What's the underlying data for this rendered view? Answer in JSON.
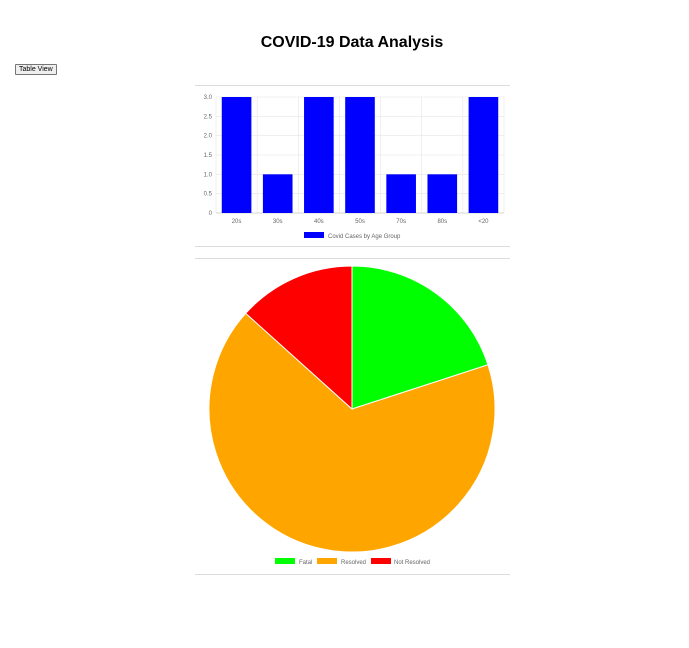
{
  "title": "COVID-19 Data Analysis",
  "toolbar": {
    "table_view_label": "Table View"
  },
  "colors": {
    "bar": "#0000ff",
    "fatal": "#00ff00",
    "resolved": "#ffa500",
    "not_resolved": "#ff0000",
    "grid": "#e5e5e5",
    "tick": "#666666"
  },
  "chart_data": [
    {
      "type": "bar",
      "categories": [
        "20s",
        "30s",
        "40s",
        "50s",
        "70s",
        "80s",
        "<20"
      ],
      "series": [
        {
          "name": "Covid Cases by Age Group",
          "values": [
            3,
            1,
            3,
            3,
            1,
            1,
            3
          ]
        }
      ],
      "ylim": [
        0,
        3.0
      ],
      "yticks": [
        "0",
        "0.5",
        "1.0",
        "1.5",
        "2.0",
        "2.5",
        "3.0"
      ],
      "grid": true,
      "legend_position": "bottom",
      "xlabel": "",
      "ylabel": ""
    },
    {
      "type": "pie",
      "labels": [
        "Fatal",
        "Resolved",
        "Not Resolved"
      ],
      "values": [
        3,
        10,
        2
      ],
      "legend_position": "bottom"
    }
  ]
}
